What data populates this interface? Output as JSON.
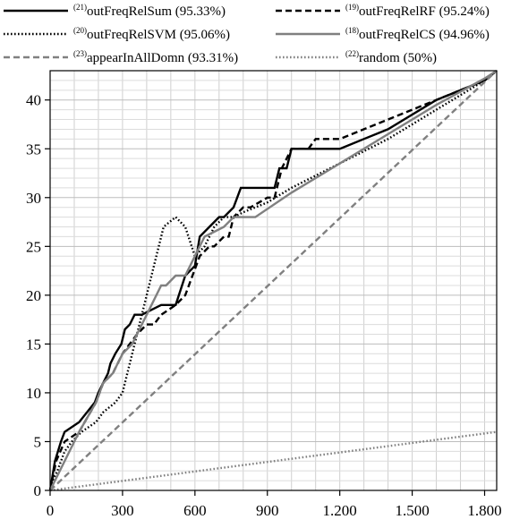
{
  "chart_data": {
    "type": "line",
    "title": "",
    "xlabel": "",
    "ylabel": "",
    "xlim": [
      0,
      1850
    ],
    "ylim": [
      0,
      43
    ],
    "grid": true,
    "legend_position": "top",
    "x_ticks": [
      0,
      300,
      600,
      900,
      1200,
      1500,
      1800
    ],
    "x_tick_labels": [
      "0",
      "300",
      "600",
      "900",
      "1.200",
      "1.500",
      "1.800"
    ],
    "y_ticks": [
      0,
      5,
      10,
      15,
      20,
      25,
      30,
      35,
      40
    ],
    "y_tick_labels": [
      "0",
      "5",
      "10",
      "15",
      "20",
      "25",
      "30",
      "35",
      "40"
    ],
    "series": [
      {
        "name": "outFreqRelSum (95.33%)",
        "sup": "(21)",
        "color": "#000000",
        "style": "solid",
        "x": [
          0,
          20,
          45,
          60,
          120,
          185,
          200,
          240,
          250,
          270,
          295,
          310,
          330,
          350,
          380,
          420,
          460,
          520,
          560,
          600,
          620,
          660,
          700,
          720,
          760,
          790,
          830,
          930,
          950,
          980,
          1000,
          1100,
          1200,
          1300,
          1400,
          1600,
          1800,
          1850
        ],
        "y": [
          0,
          3,
          5,
          6,
          7,
          9,
          10,
          12,
          13,
          14,
          15,
          16.5,
          17,
          18,
          18,
          18.5,
          19,
          19,
          22,
          23,
          26,
          27,
          28,
          28,
          29,
          31,
          31,
          31,
          33,
          33,
          35,
          35,
          35,
          36,
          37,
          40,
          42,
          43
        ]
      },
      {
        "name": "outFreqRelRF (95.24%)",
        "sup": "(19)",
        "color": "#000000",
        "style": "dashed",
        "x": [
          0,
          25,
          60,
          120,
          190,
          220,
          260,
          300,
          330,
          360,
          400,
          430,
          460,
          520,
          560,
          590,
          620,
          660,
          680,
          720,
          740,
          760,
          800,
          830,
          900,
          930,
          960,
          1000,
          1070,
          1100,
          1200,
          1300,
          1400,
          1600,
          1800,
          1850
        ],
        "y": [
          0,
          3,
          5,
          6,
          9,
          11,
          12,
          14,
          15,
          16,
          17,
          17,
          18,
          19,
          20,
          22,
          24,
          25,
          25,
          26,
          26,
          28,
          29,
          29,
          30,
          30,
          33,
          35,
          35,
          36,
          36,
          37,
          38,
          40,
          42,
          43
        ]
      },
      {
        "name": "outFreqRelSVM (95.06%)",
        "sup": "(20)",
        "color": "#000000",
        "style": "dotted",
        "x": [
          0,
          10,
          30,
          60,
          90,
          130,
          190,
          220,
          270,
          300,
          340,
          370,
          400,
          440,
          470,
          520,
          560,
          600,
          640,
          680,
          720,
          760,
          800,
          900,
          1000,
          1200,
          1400,
          1600,
          1800,
          1850
        ],
        "y": [
          0,
          1,
          2,
          4,
          5,
          6,
          7,
          8,
          9,
          10,
          14,
          17,
          20,
          24,
          27,
          28,
          27,
          24,
          25,
          27,
          28,
          28,
          28.5,
          29.5,
          31,
          33.5,
          36,
          39,
          42,
          43
        ]
      },
      {
        "name": "outFreqRelCS (94.96%)",
        "sup": "(18)",
        "color": "#808080",
        "style": "solid",
        "x": [
          0,
          60,
          120,
          190,
          220,
          260,
          300,
          340,
          380,
          420,
          460,
          480,
          520,
          560,
          600,
          640,
          680,
          720,
          760,
          850,
          1000,
          1200,
          1400,
          1600,
          1800,
          1850
        ],
        "y": [
          0,
          3,
          6,
          9,
          11,
          12,
          14,
          15,
          17,
          19,
          21,
          21,
          22,
          22,
          24,
          26,
          26.5,
          27,
          28,
          28,
          30.5,
          33.5,
          36.5,
          39.5,
          42.2,
          43
        ]
      },
      {
        "name": "appearInAllDomn (93.31%)",
        "sup": "(23)",
        "color": "#808080",
        "style": "dashed",
        "x": [
          0,
          1850
        ],
        "y": [
          0,
          43
        ]
      },
      {
        "name": "random (50%)",
        "sup": "(22)",
        "color": "#808080",
        "style": "dotted",
        "x": [
          0,
          1850
        ],
        "y": [
          0,
          6
        ]
      }
    ]
  }
}
